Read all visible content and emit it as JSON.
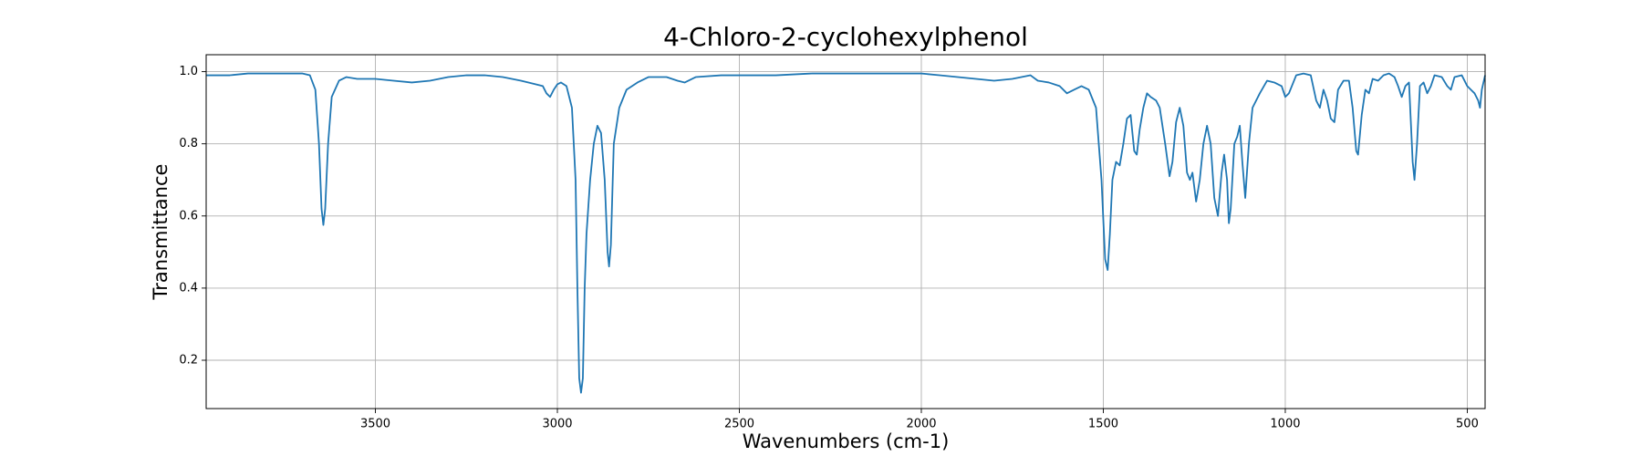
{
  "chart_data": {
    "type": "line",
    "title": "4-Chloro-2-cyclohexylphenol",
    "xlabel": "Wavenumbers (cm-1)",
    "ylabel": "Transmittance",
    "xlim": [
      3965,
      451
    ],
    "ylim": [
      0.066,
      1.047
    ],
    "xticks": [
      3500,
      3000,
      2500,
      2000,
      1500,
      1000,
      500
    ],
    "yticks": [
      0.2,
      0.4,
      0.6,
      0.8,
      {
        "value": 1,
        "label": "1.0"
      }
    ],
    "grid": true,
    "x": [
      3965,
      3900,
      3850,
      3800,
      3750,
      3700,
      3680,
      3665,
      3655,
      3648,
      3643,
      3638,
      3630,
      3620,
      3600,
      3580,
      3550,
      3500,
      3450,
      3400,
      3350,
      3300,
      3250,
      3200,
      3150,
      3100,
      3060,
      3040,
      3030,
      3020,
      3010,
      3000,
      2990,
      2975,
      2960,
      2950,
      2945,
      2940,
      2935,
      2930,
      2925,
      2920,
      2910,
      2900,
      2890,
      2880,
      2870,
      2862,
      2858,
      2853,
      2845,
      2830,
      2810,
      2780,
      2750,
      2700,
      2670,
      2650,
      2620,
      2550,
      2500,
      2400,
      2300,
      2200,
      2100,
      2000,
      1950,
      1900,
      1850,
      1800,
      1750,
      1700,
      1680,
      1650,
      1620,
      1600,
      1580,
      1560,
      1540,
      1520,
      1505,
      1495,
      1488,
      1482,
      1475,
      1465,
      1455,
      1445,
      1435,
      1425,
      1415,
      1408,
      1400,
      1390,
      1380,
      1370,
      1355,
      1345,
      1330,
      1318,
      1310,
      1300,
      1290,
      1280,
      1270,
      1262,
      1255,
      1245,
      1235,
      1225,
      1215,
      1205,
      1195,
      1185,
      1175,
      1168,
      1160,
      1155,
      1150,
      1140,
      1132,
      1125,
      1118,
      1110,
      1100,
      1090,
      1070,
      1050,
      1030,
      1010,
      1000,
      990,
      970,
      950,
      930,
      915,
      905,
      895,
      885,
      875,
      865,
      855,
      840,
      825,
      815,
      805,
      800,
      790,
      780,
      770,
      760,
      745,
      730,
      715,
      700,
      690,
      680,
      670,
      660,
      650,
      645,
      638,
      630,
      620,
      610,
      600,
      590,
      570,
      555,
      545,
      535,
      515,
      500,
      490,
      480,
      470,
      465,
      460,
      451
    ],
    "series": [
      {
        "name": "Transmittance",
        "color": "#1f77b4",
        "values": [
          0.99,
          0.99,
          0.995,
          0.995,
          0.995,
          0.995,
          0.99,
          0.95,
          0.8,
          0.62,
          0.575,
          0.62,
          0.8,
          0.93,
          0.975,
          0.985,
          0.98,
          0.98,
          0.975,
          0.97,
          0.975,
          0.985,
          0.99,
          0.99,
          0.985,
          0.975,
          0.965,
          0.96,
          0.94,
          0.93,
          0.95,
          0.965,
          0.97,
          0.96,
          0.9,
          0.7,
          0.4,
          0.15,
          0.11,
          0.15,
          0.4,
          0.55,
          0.7,
          0.8,
          0.85,
          0.83,
          0.7,
          0.5,
          0.46,
          0.52,
          0.8,
          0.9,
          0.95,
          0.97,
          0.985,
          0.985,
          0.975,
          0.97,
          0.985,
          0.99,
          0.99,
          0.99,
          0.995,
          0.995,
          0.995,
          0.995,
          0.99,
          0.985,
          0.98,
          0.975,
          0.98,
          0.99,
          0.975,
          0.97,
          0.96,
          0.94,
          0.95,
          0.96,
          0.95,
          0.9,
          0.7,
          0.48,
          0.45,
          0.55,
          0.7,
          0.75,
          0.74,
          0.8,
          0.87,
          0.88,
          0.78,
          0.77,
          0.84,
          0.9,
          0.94,
          0.93,
          0.92,
          0.9,
          0.8,
          0.71,
          0.75,
          0.86,
          0.9,
          0.85,
          0.72,
          0.7,
          0.72,
          0.64,
          0.7,
          0.8,
          0.85,
          0.8,
          0.65,
          0.6,
          0.72,
          0.77,
          0.7,
          0.58,
          0.62,
          0.8,
          0.82,
          0.85,
          0.75,
          0.65,
          0.8,
          0.9,
          0.94,
          0.975,
          0.97,
          0.96,
          0.93,
          0.94,
          0.99,
          0.995,
          0.99,
          0.92,
          0.9,
          0.95,
          0.92,
          0.87,
          0.86,
          0.95,
          0.975,
          0.975,
          0.9,
          0.78,
          0.77,
          0.88,
          0.95,
          0.94,
          0.98,
          0.975,
          0.99,
          0.995,
          0.985,
          0.96,
          0.93,
          0.96,
          0.97,
          0.75,
          0.7,
          0.8,
          0.96,
          0.97,
          0.94,
          0.96,
          0.99,
          0.985,
          0.96,
          0.95,
          0.985,
          0.99,
          0.96,
          0.95,
          0.94,
          0.92,
          0.9,
          0.95,
          0.99
        ]
      }
    ]
  }
}
